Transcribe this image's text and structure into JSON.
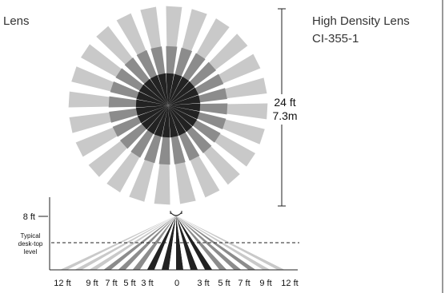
{
  "left_heading": "Lens",
  "title": "High Density Lens",
  "model": "CI-355-1",
  "range": {
    "feet": "24 ft",
    "meters": "7.3m"
  },
  "side_view": {
    "height_label": "8 ft",
    "desk_label": [
      "Typical",
      "desk-top",
      "level"
    ],
    "ticks": [
      "12 ft",
      "9 ft",
      "7 ft",
      "5 ft",
      "3 ft",
      "0",
      "3 ft",
      "5 ft",
      "7 ft",
      "9 ft",
      "12 ft"
    ]
  },
  "colors": {
    "light": "#c9c9c9",
    "mid": "#8c8c8c",
    "dark": "#222222"
  }
}
